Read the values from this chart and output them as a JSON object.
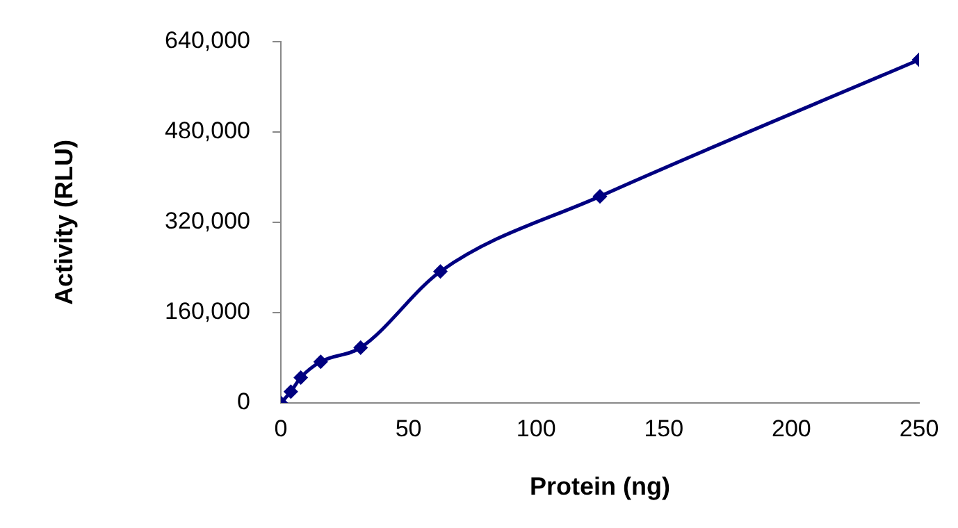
{
  "chart_data": {
    "type": "line",
    "xlabel": "Protein (ng)",
    "ylabel": "Activity (RLU)",
    "x": [
      0,
      3.9,
      7.8,
      15.6,
      31.25,
      62.5,
      125,
      250
    ],
    "series": [
      {
        "color": "#000080",
        "values": [
          0,
          20000,
          45000,
          73000,
          98000,
          233000,
          366000,
          608000
        ]
      }
    ],
    "xlim": [
      0,
      250
    ],
    "xticks": [
      0,
      50,
      100,
      150,
      200,
      250
    ],
    "ylim": [
      0,
      640000
    ],
    "yticks": [
      0,
      {
        "value": 160000,
        "label": "160,000"
      },
      {
        "value": 320000,
        "label": "320,000"
      },
      {
        "value": 480000,
        "label": "480,000"
      },
      {
        "value": 640000,
        "label": "640,000"
      }
    ],
    "marker": "diamond",
    "line_style": "solid",
    "grid": false,
    "legend": false
  }
}
